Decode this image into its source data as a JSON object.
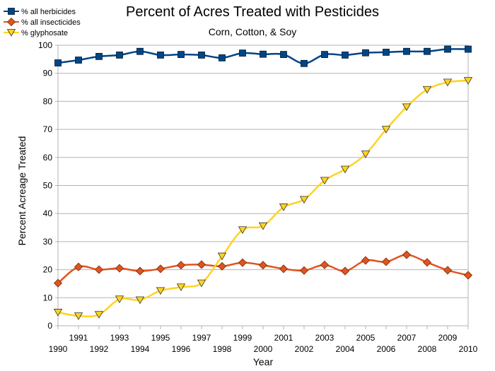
{
  "chart_data": {
    "type": "line",
    "title": "Percent of Acres Treated with Pesticides",
    "subtitle": "Corn, Cotton, & Soy",
    "xlabel": "Year",
    "ylabel": "Percent Acreage Treated",
    "xlim": [
      1990,
      2010
    ],
    "ylim": [
      0,
      100
    ],
    "yticks": [
      0,
      10,
      20,
      30,
      40,
      50,
      60,
      70,
      80,
      90,
      100
    ],
    "xticks": [
      1990,
      1991,
      1992,
      1993,
      1994,
      1995,
      1996,
      1997,
      1998,
      1999,
      2000,
      2001,
      2002,
      2003,
      2004,
      2005,
      2006,
      2007,
      2008,
      2009,
      2010
    ],
    "grid": true,
    "legend_position": "top-left",
    "x": [
      1990,
      1991,
      1992,
      1993,
      1994,
      1995,
      1996,
      1997,
      1998,
      1999,
      2000,
      2001,
      2002,
      2003,
      2004,
      2005,
      2006,
      2007,
      2008,
      2009,
      2010
    ],
    "series": [
      {
        "name": "% all herbicides",
        "color": "#004586",
        "marker": "square",
        "values": [
          93.7,
          94.7,
          96.0,
          96.5,
          97.8,
          96.5,
          96.7,
          96.5,
          95.5,
          97.2,
          96.8,
          96.7,
          93.5,
          96.7,
          96.5,
          97.3,
          97.5,
          97.8,
          97.8,
          98.6,
          98.6
        ]
      },
      {
        "name": "% all insecticides",
        "color": "#e0541f",
        "marker": "diamond",
        "values": [
          15.2,
          21.0,
          20.0,
          20.5,
          19.5,
          20.3,
          21.6,
          21.8,
          21.2,
          22.5,
          21.6,
          20.3,
          19.7,
          21.7,
          19.5,
          23.3,
          22.8,
          25.3,
          22.6,
          19.8,
          18.0
        ]
      },
      {
        "name": "% glyphosate",
        "color": "#ffd320",
        "marker": "triangle-down",
        "values": [
          4.8,
          3.5,
          4.0,
          9.5,
          9.2,
          12.5,
          13.8,
          15.2,
          24.8,
          34.2,
          35.6,
          42.3,
          45.0,
          51.8,
          55.8,
          61.2,
          70.0,
          78.0,
          84.2,
          86.8,
          87.4
        ]
      }
    ]
  }
}
